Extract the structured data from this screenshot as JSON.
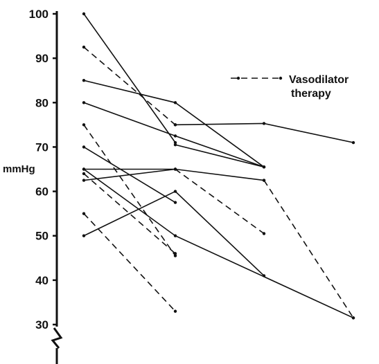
{
  "chart_data": {
    "type": "line",
    "ylabel": "mmHg",
    "ylim": [
      30,
      100
    ],
    "yticks": [
      30,
      40,
      50,
      60,
      70,
      80,
      90,
      100
    ],
    "axis_break": true,
    "x": [
      1,
      2,
      3,
      4
    ],
    "legend": {
      "label_line1": "Vasodilator",
      "label_line2": "therapy",
      "position": "top-right",
      "style": "dashed"
    },
    "series": [
      {
        "style": "solid",
        "points": [
          [
            1,
            100
          ],
          [
            2,
            71
          ]
        ]
      },
      {
        "style": "solid",
        "points": [
          [
            1,
            85
          ],
          [
            2,
            80
          ],
          [
            3,
            65.5
          ]
        ]
      },
      {
        "style": "solid",
        "points": [
          [
            1,
            80
          ],
          [
            2,
            72.5
          ],
          [
            3,
            65.5
          ]
        ]
      },
      {
        "style": "solid",
        "points": [
          [
            1,
            70
          ],
          [
            2,
            57.5
          ]
        ]
      },
      {
        "style": "solid",
        "points": [
          [
            1,
            65
          ],
          [
            2,
            65
          ],
          [
            3,
            62.5
          ]
        ]
      },
      {
        "style": "solid",
        "points": [
          [
            1,
            62.5
          ],
          [
            2,
            65
          ]
        ]
      },
      {
        "style": "solid",
        "points": [
          [
            1,
            65
          ],
          [
            2,
            50
          ],
          [
            4,
            31.5
          ]
        ]
      },
      {
        "style": "solid",
        "points": [
          [
            1,
            50
          ],
          [
            2,
            60
          ],
          [
            3,
            41
          ]
        ]
      },
      {
        "style": "solid",
        "points": [
          [
            2,
            70.5
          ],
          [
            3,
            65.5
          ]
        ]
      },
      {
        "style": "solid",
        "points": [
          [
            2,
            75
          ],
          [
            3,
            75.3
          ],
          [
            4,
            71
          ]
        ]
      },
      {
        "style": "dashed",
        "points": [
          [
            1,
            92.5
          ],
          [
            2,
            75
          ]
        ]
      },
      {
        "style": "dashed",
        "points": [
          [
            1,
            75
          ],
          [
            2,
            45.5
          ]
        ]
      },
      {
        "style": "dashed",
        "points": [
          [
            1,
            64
          ],
          [
            2,
            46
          ]
        ]
      },
      {
        "style": "dashed",
        "points": [
          [
            1,
            55
          ],
          [
            2,
            33
          ]
        ]
      },
      {
        "style": "dashed",
        "points": [
          [
            2,
            65
          ],
          [
            3,
            50.5
          ]
        ]
      },
      {
        "style": "dashed",
        "points": [
          [
            3,
            62.5
          ],
          [
            4,
            31.5
          ]
        ]
      }
    ]
  }
}
